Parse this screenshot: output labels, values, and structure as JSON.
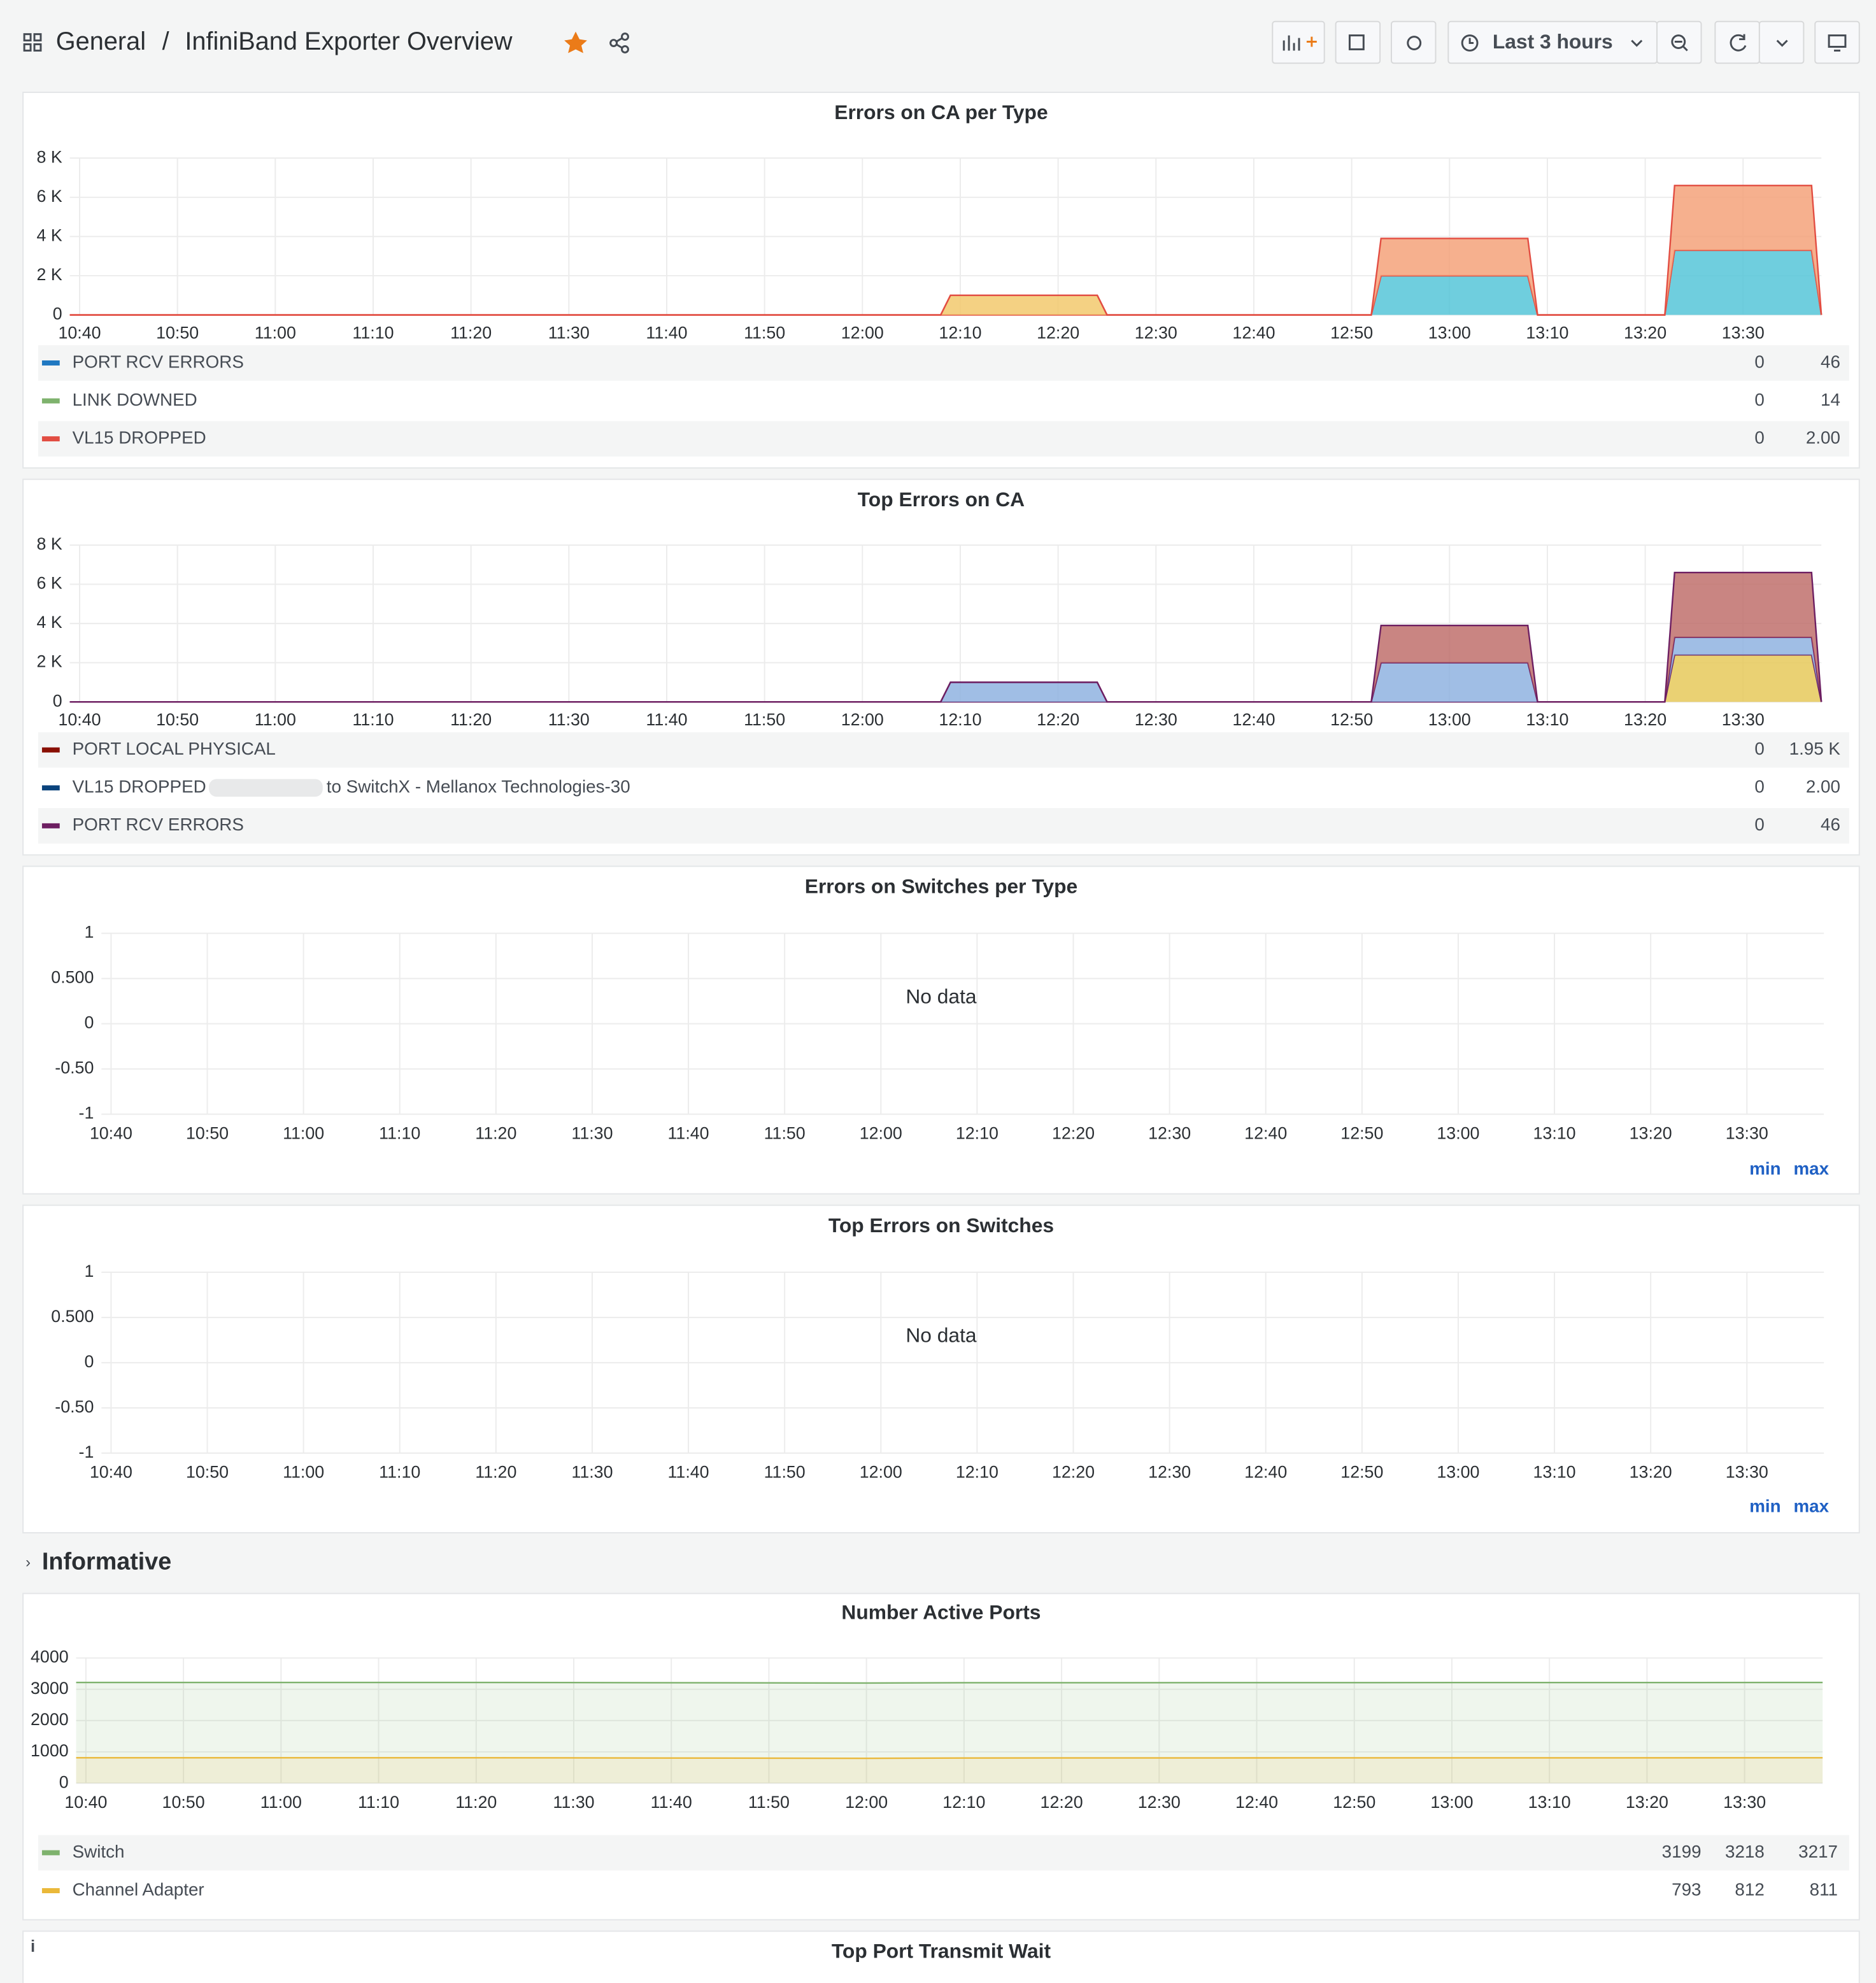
{
  "header": {
    "breadcrumb": "General",
    "title": "InfiniBand Exporter Overview",
    "time_range": "Last 3 hours"
  },
  "section": "Informative",
  "chart_data": [
    {
      "type": "area",
      "title": "Errors on CA per Type",
      "stacked": true,
      "grid": true,
      "x": [
        "10:39",
        "12:08",
        "12:09",
        "12:24",
        "12:25",
        "12:52",
        "12:53",
        "13:08",
        "13:09",
        "13:22",
        "13:23",
        "13:37",
        "13:38"
      ],
      "series": [
        {
          "name": "PORT RCV ERRORS",
          "color": "#56c5d8",
          "legend_color": "#1f78c1",
          "values": [
            0,
            0,
            0,
            0,
            0,
            0,
            2000,
            2000,
            0,
            0,
            3300,
            3300,
            0
          ],
          "legend_values": [
            "0",
            "46"
          ]
        },
        {
          "name": "LINK DOWNED",
          "color": "#f2c96d",
          "legend_color": "#7eb26d",
          "values": [
            0,
            0,
            1000,
            1000,
            0,
            0,
            0,
            0,
            0,
            0,
            0,
            0,
            0
          ],
          "legend_values": [
            "0",
            "14"
          ]
        },
        {
          "name": "VL15 DROPPED",
          "color": "#f4a27a",
          "legend_color": "#e24d42",
          "values": [
            0,
            0,
            0,
            0,
            0,
            0,
            1900,
            1900,
            0,
            0,
            3300,
            3300,
            0
          ],
          "legend_values": [
            "0",
            "2.00"
          ]
        }
      ],
      "xlim": [
        "10:39",
        "13:38"
      ],
      "xticks": [
        "10:40",
        "10:50",
        "11:00",
        "11:10",
        "11:20",
        "11:30",
        "11:40",
        "11:50",
        "12:00",
        "12:10",
        "12:20",
        "12:30",
        "12:40",
        "12:50",
        "13:00",
        "13:10",
        "13:20",
        "13:30"
      ],
      "ylim": [
        0,
        8000
      ],
      "yticks": [
        {
          "value": 0,
          "label": "0"
        },
        {
          "value": 2000,
          "label": "2 K"
        },
        {
          "value": 4000,
          "label": "4 K"
        },
        {
          "value": 6000,
          "label": "6 K"
        },
        {
          "value": 8000,
          "label": "8 K"
        }
      ]
    },
    {
      "type": "area",
      "title": "Top Errors on CA",
      "stacked": true,
      "grid": true,
      "x": [
        "10:39",
        "12:08",
        "12:09",
        "12:24",
        "12:25",
        "12:52",
        "12:53",
        "13:08",
        "13:09",
        "13:22",
        "13:23",
        "13:37",
        "13:38"
      ],
      "series": [
        {
          "name": "PORT LOCAL PHYSICAL",
          "color": "#e6c95a",
          "legend_color": "#890f02",
          "values": [
            0,
            0,
            0,
            0,
            0,
            0,
            0,
            0,
            0,
            0,
            2400,
            2400,
            0
          ],
          "legend_values": [
            "0",
            "1.95 K"
          ]
        },
        {
          "name": "VL15 DROPPED",
          "name_suffix": "to SwitchX - Mellanox Technologies-30",
          "color": "#8fb3e0",
          "legend_color": "#0a437c",
          "values": [
            0,
            0,
            1000,
            1000,
            0,
            0,
            2000,
            2000,
            0,
            0,
            900,
            900,
            0
          ],
          "legend_values": [
            "0",
            "2.00"
          ]
        },
        {
          "name": "PORT RCV ERRORS",
          "color": "#c0706c",
          "legend_color": "#6d1f62",
          "values": [
            0,
            0,
            0,
            0,
            0,
            0,
            1900,
            1900,
            0,
            0,
            3300,
            3300,
            0
          ],
          "legend_values": [
            "0",
            "46"
          ]
        }
      ],
      "xlim": [
        "10:39",
        "13:38"
      ],
      "xticks": [
        "10:40",
        "10:50",
        "11:00",
        "11:10",
        "11:20",
        "11:30",
        "11:40",
        "11:50",
        "12:00",
        "12:10",
        "12:20",
        "12:30",
        "12:40",
        "12:50",
        "13:00",
        "13:10",
        "13:20",
        "13:30"
      ],
      "ylim": [
        0,
        8000
      ],
      "yticks": [
        {
          "value": 0,
          "label": "0"
        },
        {
          "value": 2000,
          "label": "2 K"
        },
        {
          "value": 4000,
          "label": "4 K"
        },
        {
          "value": 6000,
          "label": "6 K"
        },
        {
          "value": 8000,
          "label": "8 K"
        }
      ]
    },
    {
      "type": "line",
      "title": "Errors on Switches per Type",
      "grid": true,
      "no_data_text": "No data",
      "links": [
        "min",
        "max"
      ],
      "x": [],
      "series": [],
      "xlim": [
        "10:39",
        "13:38"
      ],
      "xticks": [
        "10:40",
        "10:50",
        "11:00",
        "11:10",
        "11:20",
        "11:30",
        "11:40",
        "11:50",
        "12:00",
        "12:10",
        "12:20",
        "12:30",
        "12:40",
        "12:50",
        "13:00",
        "13:10",
        "13:20",
        "13:30"
      ],
      "ylim": [
        -1,
        1
      ],
      "yticks": [
        -1,
        {
          "value": -0.5,
          "label": "-0.50"
        },
        0,
        {
          "value": 0.5,
          "label": "0.500"
        },
        1
      ]
    },
    {
      "type": "line",
      "title": "Top Errors on Switches",
      "grid": true,
      "no_data_text": "No data",
      "links": [
        "min",
        "max"
      ],
      "x": [],
      "series": [],
      "xlim": [
        "10:39",
        "13:38"
      ],
      "xticks": [
        "10:40",
        "10:50",
        "11:00",
        "11:10",
        "11:20",
        "11:30",
        "11:40",
        "11:50",
        "12:00",
        "12:10",
        "12:20",
        "12:30",
        "12:40",
        "12:50",
        "13:00",
        "13:10",
        "13:20",
        "13:30"
      ],
      "ylim": [
        -1,
        1
      ],
      "yticks": [
        -1,
        {
          "value": -0.5,
          "label": "-0.50"
        },
        0,
        {
          "value": 0.5,
          "label": "0.500"
        },
        1
      ]
    },
    {
      "type": "line",
      "title": "Number Active Ports",
      "grid": true,
      "fill": true,
      "x": [
        "10:39",
        "11:20",
        "11:50",
        "12:00",
        "12:10",
        "12:40",
        "13:10",
        "13:38"
      ],
      "series": [
        {
          "name": "Switch",
          "color": "#7eb26d",
          "values": [
            3217,
            3218,
            3205,
            3199,
            3210,
            3212,
            3215,
            3217
          ],
          "legend_values": [
            "3199",
            "3218",
            "3217"
          ]
        },
        {
          "name": "Channel Adapter",
          "color": "#eab839",
          "values": [
            811,
            812,
            800,
            793,
            805,
            808,
            810,
            811
          ],
          "legend_values": [
            "793",
            "812",
            "811"
          ]
        }
      ],
      "xlim": [
        "10:39",
        "13:38"
      ],
      "xticks": [
        "10:40",
        "10:50",
        "11:00",
        "11:10",
        "11:20",
        "11:30",
        "11:40",
        "11:50",
        "12:00",
        "12:10",
        "12:20",
        "12:30",
        "12:40",
        "12:50",
        "13:00",
        "13:10",
        "13:20",
        "13:30"
      ],
      "ylim": [
        0,
        4000
      ],
      "yticks": [
        0,
        1000,
        2000,
        3000,
        4000
      ]
    },
    {
      "type": "line",
      "title": "Top Port Transmit Wait"
    }
  ]
}
